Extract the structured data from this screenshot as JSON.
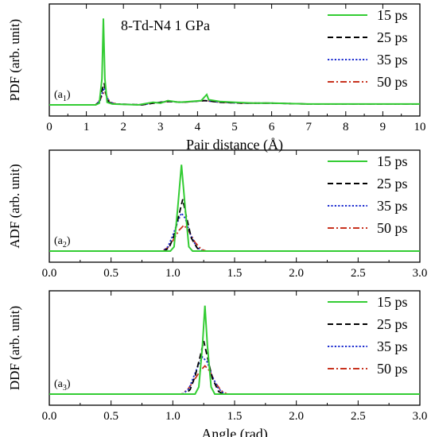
{
  "legend": [
    {
      "name": "15 ps",
      "color": "#33cc33",
      "dash": "solid"
    },
    {
      "name": "25 ps",
      "color": "#000000",
      "dash": "dash"
    },
    {
      "name": "35 ps",
      "color": "#1f2fd0",
      "dash": "dot"
    },
    {
      "name": "50 ps",
      "color": "#c8321e",
      "dash": "dashdot"
    }
  ],
  "chart_data": [
    {
      "type": "line",
      "panel_label": "(a1)",
      "annotation": "8-Td-N4   1 GPa",
      "ylabel": "PDF (arb. unit)",
      "xlabel": "Pair distance (Å)",
      "xlim": [
        0,
        10
      ],
      "xticks": [
        "0",
        "1",
        "2",
        "3",
        "4",
        "5",
        "6",
        "7",
        "8",
        "9",
        "10"
      ],
      "ylim": [
        0,
        1.15
      ],
      "legend_position": "top-right",
      "series": [
        {
          "name": "15 ps",
          "points": [
            [
              0,
              0
            ],
            [
              1.25,
              0
            ],
            [
              1.35,
              0.02
            ],
            [
              1.42,
              0.3
            ],
            [
              1.46,
              1.0
            ],
            [
              1.5,
              0.3
            ],
            [
              1.56,
              0.03
            ],
            [
              1.7,
              0.01
            ],
            [
              2.4,
              0.0
            ],
            [
              2.8,
              0.03
            ],
            [
              3.0,
              0.02
            ],
            [
              3.2,
              0.05
            ],
            [
              3.5,
              0.03
            ],
            [
              3.8,
              0.04
            ],
            [
              4.1,
              0.05
            ],
            [
              4.25,
              0.12
            ],
            [
              4.3,
              0.06
            ],
            [
              4.6,
              0.04
            ],
            [
              5.0,
              0.03
            ],
            [
              5.5,
              0.02
            ],
            [
              6.0,
              0.02
            ],
            [
              7.0,
              0.01
            ],
            [
              8.0,
              0.01
            ],
            [
              10,
              0.01
            ]
          ]
        },
        {
          "name": "25 ps",
          "points": [
            [
              0,
              0
            ],
            [
              1.25,
              0
            ],
            [
              1.36,
              0.04
            ],
            [
              1.43,
              0.18
            ],
            [
              1.48,
              0.25
            ],
            [
              1.53,
              0.12
            ],
            [
              1.6,
              0.03
            ],
            [
              1.8,
              0.01
            ],
            [
              2.5,
              0.0
            ],
            [
              2.8,
              0.02
            ],
            [
              3.2,
              0.04
            ],
            [
              3.6,
              0.03
            ],
            [
              4.2,
              0.05
            ],
            [
              4.6,
              0.03
            ],
            [
              5.2,
              0.02
            ],
            [
              6.0,
              0.02
            ],
            [
              7.0,
              0.01
            ],
            [
              10,
              0.01
            ]
          ]
        },
        {
          "name": "35 ps",
          "points": [
            [
              0,
              0
            ],
            [
              1.25,
              0
            ],
            [
              1.37,
              0.05
            ],
            [
              1.44,
              0.15
            ],
            [
              1.49,
              0.2
            ],
            [
              1.55,
              0.1
            ],
            [
              1.62,
              0.03
            ],
            [
              1.8,
              0.01
            ],
            [
              2.5,
              0.0
            ],
            [
              2.8,
              0.02
            ],
            [
              3.2,
              0.04
            ],
            [
              3.6,
              0.03
            ],
            [
              4.2,
              0.05
            ],
            [
              4.6,
              0.03
            ],
            [
              5.2,
              0.02
            ],
            [
              6.0,
              0.02
            ],
            [
              7.0,
              0.01
            ],
            [
              10,
              0.01
            ]
          ]
        },
        {
          "name": "50 ps",
          "points": [
            [
              0,
              0
            ],
            [
              1.25,
              0
            ],
            [
              1.37,
              0.06
            ],
            [
              1.45,
              0.13
            ],
            [
              1.5,
              0.16
            ],
            [
              1.56,
              0.09
            ],
            [
              1.64,
              0.03
            ],
            [
              1.8,
              0.01
            ],
            [
              2.5,
              0.0
            ],
            [
              2.8,
              0.02
            ],
            [
              3.2,
              0.04
            ],
            [
              3.6,
              0.03
            ],
            [
              4.2,
              0.05
            ],
            [
              4.6,
              0.03
            ],
            [
              5.2,
              0.02
            ],
            [
              6.0,
              0.02
            ],
            [
              7.0,
              0.01
            ],
            [
              10,
              0.01
            ]
          ]
        }
      ]
    },
    {
      "type": "line",
      "panel_label": "(a2)",
      "ylabel": "ADF (arb. unit)",
      "xlabel": "",
      "xlim": [
        0,
        3
      ],
      "xticks": [
        "0.0",
        "0.5",
        "1.0",
        "1.5",
        "2.0",
        "2.5",
        "3.0"
      ],
      "ylim": [
        0,
        1.15
      ],
      "legend_position": "top-right",
      "series": [
        {
          "name": "15 ps",
          "points": [
            [
              0,
              0
            ],
            [
              0.98,
              0
            ],
            [
              1.01,
              0.05
            ],
            [
              1.04,
              0.5
            ],
            [
              1.07,
              1.0
            ],
            [
              1.1,
              0.5
            ],
            [
              1.13,
              0.05
            ],
            [
              1.16,
              0
            ],
            [
              3,
              0
            ]
          ]
        },
        {
          "name": "25 ps",
          "points": [
            [
              0,
              0
            ],
            [
              0.93,
              0
            ],
            [
              0.97,
              0.04
            ],
            [
              1.01,
              0.18
            ],
            [
              1.05,
              0.42
            ],
            [
              1.08,
              0.6
            ],
            [
              1.11,
              0.4
            ],
            [
              1.15,
              0.15
            ],
            [
              1.2,
              0.03
            ],
            [
              1.24,
              0
            ],
            [
              3,
              0
            ]
          ]
        },
        {
          "name": "35 ps",
          "points": [
            [
              0,
              0
            ],
            [
              0.92,
              0
            ],
            [
              0.96,
              0.05
            ],
            [
              1.0,
              0.18
            ],
            [
              1.04,
              0.34
            ],
            [
              1.07,
              0.44
            ],
            [
              1.1,
              0.38
            ],
            [
              1.14,
              0.2
            ],
            [
              1.19,
              0.05
            ],
            [
              1.24,
              0
            ],
            [
              3,
              0
            ]
          ]
        },
        {
          "name": "50 ps",
          "points": [
            [
              0,
              0
            ],
            [
              0.91,
              0
            ],
            [
              0.96,
              0.04
            ],
            [
              1.0,
              0.12
            ],
            [
              1.05,
              0.24
            ],
            [
              1.09,
              0.3
            ],
            [
              1.13,
              0.23
            ],
            [
              1.18,
              0.1
            ],
            [
              1.23,
              0.02
            ],
            [
              1.27,
              0
            ],
            [
              3,
              0
            ]
          ]
        }
      ]
    },
    {
      "type": "line",
      "panel_label": "(a3)",
      "ylabel": "DDF (arb. unit)",
      "xlabel": "Angle (rad)",
      "xlim": [
        0,
        3
      ],
      "xticks": [
        "0.0",
        "0.5",
        "1.0",
        "1.5",
        "2.0",
        "2.5",
        "3.0"
      ],
      "ylim": [
        0,
        1.15
      ],
      "legend_position": "top-right",
      "series": [
        {
          "name": "15 ps",
          "points": [
            [
              0,
              0
            ],
            [
              1.18,
              0
            ],
            [
              1.21,
              0.08
            ],
            [
              1.24,
              0.55
            ],
            [
              1.26,
              1.0
            ],
            [
              1.28,
              0.55
            ],
            [
              1.31,
              0.08
            ],
            [
              1.34,
              0
            ],
            [
              3,
              0
            ]
          ]
        },
        {
          "name": "25 ps",
          "points": [
            [
              0,
              0
            ],
            [
              1.1,
              0
            ],
            [
              1.14,
              0.05
            ],
            [
              1.18,
              0.2
            ],
            [
              1.22,
              0.42
            ],
            [
              1.25,
              0.6
            ],
            [
              1.28,
              0.42
            ],
            [
              1.32,
              0.18
            ],
            [
              1.37,
              0.03
            ],
            [
              1.41,
              0
            ],
            [
              3,
              0
            ]
          ]
        },
        {
          "name": "35 ps",
          "points": [
            [
              0,
              0
            ],
            [
              1.08,
              0
            ],
            [
              1.13,
              0.06
            ],
            [
              1.17,
              0.2
            ],
            [
              1.21,
              0.34
            ],
            [
              1.24,
              0.42
            ],
            [
              1.28,
              0.36
            ],
            [
              1.32,
              0.2
            ],
            [
              1.37,
              0.06
            ],
            [
              1.42,
              0
            ],
            [
              3,
              0
            ]
          ]
        },
        {
          "name": "50 ps",
          "points": [
            [
              0,
              0
            ],
            [
              1.07,
              0
            ],
            [
              1.12,
              0.05
            ],
            [
              1.17,
              0.15
            ],
            [
              1.22,
              0.26
            ],
            [
              1.26,
              0.32
            ],
            [
              1.3,
              0.26
            ],
            [
              1.34,
              0.14
            ],
            [
              1.39,
              0.04
            ],
            [
              1.44,
              0
            ],
            [
              3,
              0
            ]
          ]
        }
      ]
    }
  ]
}
